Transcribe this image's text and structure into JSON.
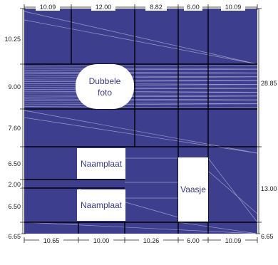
{
  "colors": {
    "panel": "#3e3e8e",
    "grid_line": "#000000",
    "thin_line": "#9a9ac8",
    "box_fill": "#ffffff",
    "box_text": "#3a3a8c",
    "dim_text": "#222222"
  },
  "dimensions": {
    "top": [
      "10.09",
      "12.00",
      "8.82",
      "6.00",
      "10.09"
    ],
    "bottom": [
      "10.65",
      "10.00",
      "10.26",
      "6.00",
      "10.09"
    ],
    "left": [
      "10.25",
      "9.00",
      "7.60",
      "6.50",
      "2.00",
      "6.50",
      "6.65"
    ],
    "right": [
      "28.85",
      "13.00",
      "6.65"
    ]
  },
  "boxes": {
    "dubbele_foto": [
      "Dubbele",
      "foto"
    ],
    "naamplaat_1": "Naamplaat",
    "naamplaat_2": "Naamplaat",
    "vaasje": "Vaasje"
  }
}
